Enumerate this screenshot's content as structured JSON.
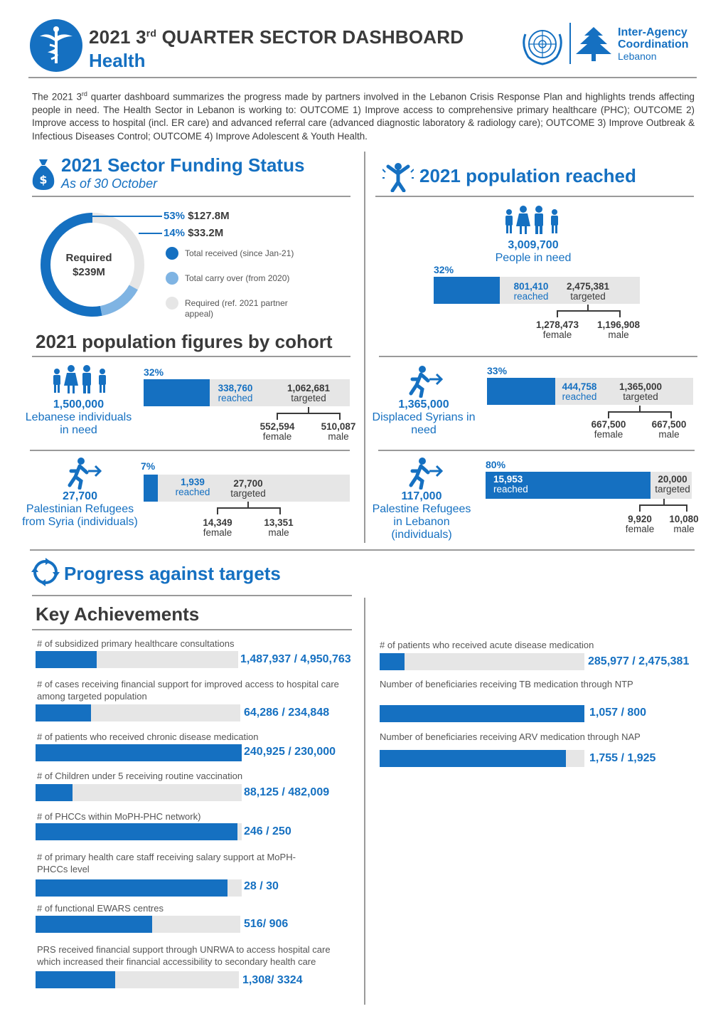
{
  "header": {
    "title_pre": "2021 3",
    "title_sup": "rd",
    "title_post": " QUARTER SECTOR DASHBOARD",
    "subtitle": "Health",
    "org_line1": "Inter-Agency",
    "org_line2": "Coordination",
    "org_line3": "Lebanon"
  },
  "intro": {
    "text_pre": "The 2021 3",
    "text_sup": "rd",
    "text_post": " quarter dashboard summarizes the progress made by partners involved in the Lebanon Crisis Response Plan and highlights trends affecting people in need. The Health Sector in Lebanon is working to: OUTCOME 1) Improve access to comprehensive primary healthcare (PHC); OUTCOME 2) Improve access to hospital (incl. ER care) and advanced referral care (advanced diagnostic laboratory & radiology care); OUTCOME 3) Improve Outbreak & Infectious Diseases Control; OUTCOME 4) Improve Adolescent & Youth Health."
  },
  "funding": {
    "title": "2021 Sector Funding Status",
    "subtitle": "As of 30 October",
    "donut_label_1": "Required",
    "donut_label_2": "$239M",
    "received_pct": "53%",
    "received_amt": "$127.8M",
    "carry_pct": "14%",
    "carry_amt": "$33.2M",
    "received_fraction": 0.53,
    "carry_fraction": 0.14,
    "legend": [
      {
        "label": "Total received (since Jan-21)",
        "color": "#1570c1"
      },
      {
        "label": "Total carry over (from 2020)",
        "color": "#7fb4e3"
      },
      {
        "label": "Required (ref. 2021 partner appeal)",
        "color": "#e6e6e6"
      }
    ]
  },
  "reached": {
    "title": "2021 population reached",
    "pin_value": "3,009,700",
    "pin_label": "People in need",
    "pct": "32%",
    "fraction": 0.32,
    "reached_value": "801,410",
    "reached_label": "reached",
    "targeted_value": "2,475,381",
    "targeted_label": "targeted",
    "female_value": "1,278,473",
    "female_label": "female",
    "male_value": "1,196,908",
    "male_label": "male"
  },
  "cohort": {
    "title": "2021 population figures by cohort",
    "groups": [
      {
        "value": "1,500,000",
        "label": "Lebanese individuals in need",
        "pct": "32%",
        "fraction": 0.32,
        "reached": "338,760",
        "targeted": "1,062,681",
        "female": "552,594",
        "male": "510,087",
        "reached_label": "reached",
        "targeted_label": "targeted",
        "female_label": "female",
        "male_label": "male"
      },
      {
        "value": "1,365,000",
        "label": "Displaced Syrians in need",
        "pct": "33%",
        "fraction": 0.33,
        "reached": "444,758",
        "targeted": "1,365,000",
        "female": "667,500",
        "male": "667,500",
        "reached_label": "reached",
        "targeted_label": "targeted",
        "female_label": "female",
        "male_label": "male"
      },
      {
        "value": "27,700",
        "label": "Palestinian Refugees from Syria (individuals)",
        "pct": "7%",
        "fraction": 0.07,
        "reached": "1,939",
        "targeted": "27,700",
        "female": "14,349",
        "male": "13,351",
        "reached_label": "reached",
        "targeted_label": "targeted",
        "female_label": "female",
        "male_label": "male"
      },
      {
        "value": "117,000",
        "label": "Palestine Refugees in Lebanon (individuals)",
        "pct": "80%",
        "fraction": 0.8,
        "reached": "15,953",
        "targeted": "20,000",
        "female": "9,920",
        "male": "10,080",
        "reached_label": "reached",
        "targeted_label": "targeted",
        "female_label": "female",
        "male_label": "male"
      }
    ]
  },
  "progress": {
    "title": "Progress against targets",
    "subtitle": "Key Achievements",
    "left": [
      {
        "label": "# of subsidized primary healthcare consultations",
        "value": "1,487,937 / 4,950,763",
        "fraction": 0.3
      },
      {
        "label": "# of cases receiving financial support for improved access to hospital care among targeted population",
        "value": "64,286 / 234,848",
        "fraction": 0.27
      },
      {
        "label": "# of patients who received chronic disease medication",
        "value": "240,925 / 230,000",
        "fraction": 1.0
      },
      {
        "label": "# of Children under 5 receiving routine vaccination",
        "value": "88,125 / 482,009",
        "fraction": 0.18
      },
      {
        "label": "# of PHCCs within MoPH-PHC network)",
        "value": "246 / 250",
        "fraction": 0.98
      },
      {
        "label": "# of primary health care staff receiving salary support at MoPH-PHCCs level",
        "value": "28 / 30",
        "fraction": 0.93
      },
      {
        "label": "# of functional EWARS centres",
        "value": "516/ 906",
        "fraction": 0.57
      },
      {
        "label": "PRS received financial support through UNRWA to access hospital care which increased their financial accessibility to secondary health care",
        "value": "1,308/ 3324",
        "fraction": 0.39
      }
    ],
    "right": [
      {
        "label": "# of patients who received acute disease medication",
        "value": "285,977 / 2,475,381",
        "fraction": 0.12
      },
      {
        "label": "Number of beneficiaries receiving TB medication through NTP",
        "value": "1,057 / 800",
        "fraction": 1.0
      },
      {
        "label": "Number of beneficiaries receiving ARV medication through NAP",
        "value": "1,755 / 1,925",
        "fraction": 0.91
      }
    ]
  }
}
